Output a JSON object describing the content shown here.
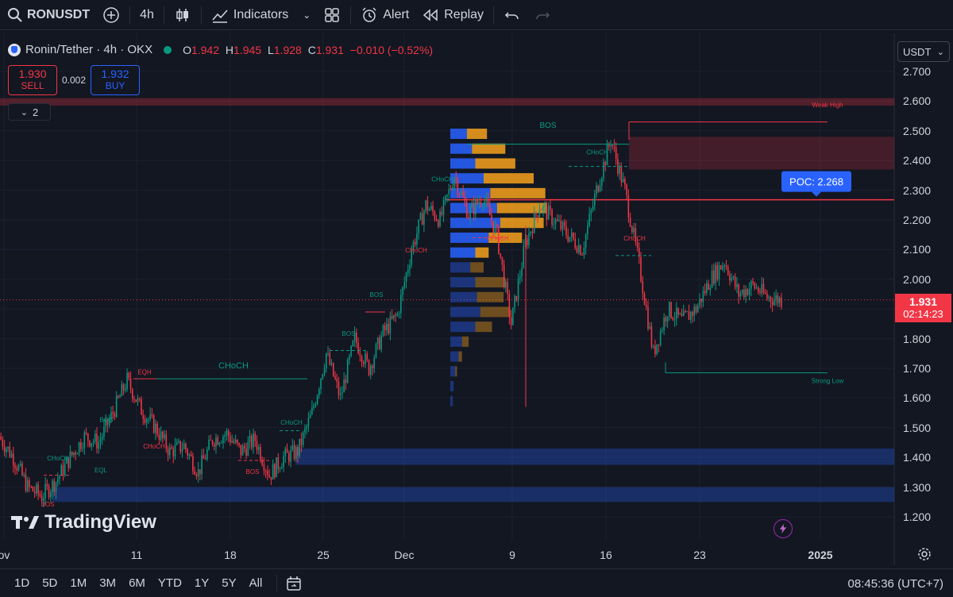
{
  "toolbar": {
    "symbol": "RONUSDT",
    "interval": "4h",
    "indicators_label": "Indicators",
    "alert_label": "Alert",
    "replay_label": "Replay"
  },
  "legend": {
    "title": "Ronin/Tether · 4h · OKX",
    "o_label": "O",
    "o_value": "1.942",
    "h_label": "H",
    "h_value": "1.945",
    "l_label": "L",
    "l_value": "1.928",
    "c_label": "C",
    "c_value": "1.931",
    "change": "−0.010 (−0.52%)"
  },
  "trade": {
    "sell_price": "1.930",
    "sell_label": "SELL",
    "spread": "0.002",
    "buy_price": "1.932",
    "buy_label": "BUY"
  },
  "indicators_count": "2",
  "price_axis": {
    "currency": "USDT",
    "ticks": [
      "2.700",
      "2.600",
      "2.500",
      "2.400",
      "2.300",
      "2.200",
      "2.100",
      "2.000",
      "1.900",
      "1.800",
      "1.700",
      "1.600",
      "1.500",
      "1.400",
      "1.300",
      "1.200"
    ],
    "last_price": "1.931",
    "countdown": "02:14:23"
  },
  "time_axis": {
    "ticks": [
      "ov",
      "11",
      "18",
      "25",
      "Dec",
      "9",
      "16",
      "23",
      "2025"
    ]
  },
  "annotations": {
    "poc": "POC: 2.268",
    "weak_high": "Weak High",
    "strong_low": "Strong Low",
    "bos": "BOS",
    "choch": "CHoCH",
    "eqh": "EQH",
    "eql": "EQL"
  },
  "bottom": {
    "ranges": [
      "1D",
      "5D",
      "1M",
      "3M",
      "6M",
      "YTD",
      "1Y",
      "5Y",
      "All"
    ],
    "clock": "08:45:36 (UTC+7)"
  },
  "watermark": "TradingView",
  "colors": {
    "background": "#131722",
    "up": "#089981",
    "down": "#f23645",
    "accent": "#2962ff",
    "vp_blue": "#2962ff",
    "vp_orange": "#f7a21b"
  },
  "chart_data": {
    "type": "candlestick",
    "title": "Ronin/Tether · 4h · OKX",
    "ylim": [
      1.2,
      2.7
    ],
    "poc": 2.268,
    "last_price": 1.931,
    "close_path": [
      [
        "ov",
        1.47
      ],
      [
        "",
        1.4
      ],
      [
        "",
        1.3
      ],
      [
        "",
        1.27
      ],
      [
        "",
        1.32
      ],
      [
        "",
        1.4
      ],
      [
        "",
        1.47
      ],
      [
        "",
        1.45
      ],
      [
        "11",
        1.55
      ],
      [
        "",
        1.66
      ],
      [
        "",
        1.56
      ],
      [
        "",
        1.5
      ],
      [
        "",
        1.42
      ],
      [
        "",
        1.44
      ],
      [
        "",
        1.35
      ],
      [
        "",
        1.46
      ],
      [
        "18",
        1.48
      ],
      [
        "",
        1.42
      ],
      [
        "",
        1.46
      ],
      [
        "",
        1.34
      ],
      [
        "",
        1.4
      ],
      [
        "",
        1.42
      ],
      [
        "",
        1.55
      ],
      [
        "",
        1.75
      ],
      [
        "25",
        1.6
      ],
      [
        "",
        1.8
      ],
      [
        "",
        1.7
      ],
      [
        "",
        1.82
      ],
      [
        "",
        1.88
      ],
      [
        "",
        2.1
      ],
      [
        "Dec",
        2.25
      ],
      [
        "",
        2.2
      ],
      [
        "",
        2.35
      ],
      [
        "",
        2.22
      ],
      [
        "",
        2.28
      ],
      [
        "9",
        2.15
      ],
      [
        "",
        1.85
      ],
      [
        "",
        2.12
      ],
      [
        "",
        2.25
      ],
      [
        "",
        2.2
      ],
      [
        "",
        2.15
      ],
      [
        "16",
        2.1
      ],
      [
        "",
        2.3
      ],
      [
        "",
        2.47
      ],
      [
        "",
        2.3
      ],
      [
        "",
        2.05
      ],
      [
        "",
        1.75
      ],
      [
        "",
        1.9
      ],
      [
        "",
        1.86
      ],
      [
        "23",
        1.9
      ],
      [
        "",
        2.0
      ],
      [
        "",
        2.06
      ],
      [
        "",
        1.95
      ],
      [
        "",
        1.98
      ],
      [
        "",
        1.94
      ],
      [
        "",
        1.931
      ]
    ],
    "volume_profile": [
      {
        "price": 2.49,
        "blue": 1.0,
        "orange": 1.2
      },
      {
        "price": 2.44,
        "blue": 1.3,
        "orange": 2.0
      },
      {
        "price": 2.39,
        "blue": 1.5,
        "orange": 2.4
      },
      {
        "price": 2.34,
        "blue": 2.0,
        "orange": 3.0
      },
      {
        "price": 2.29,
        "blue": 2.4,
        "orange": 3.3
      },
      {
        "price": 2.24,
        "blue": 2.8,
        "orange": 3.0
      },
      {
        "price": 2.19,
        "blue": 3.0,
        "orange": 2.6
      },
      {
        "price": 2.14,
        "blue": 2.3,
        "orange": 2.0
      },
      {
        "price": 2.09,
        "blue": 1.5,
        "orange": 0.8
      },
      {
        "price": 2.04,
        "blue": 1.2,
        "orange": 0.8
      },
      {
        "price": 1.99,
        "blue": 1.5,
        "orange": 1.8
      },
      {
        "price": 1.94,
        "blue": 1.6,
        "orange": 1.6
      },
      {
        "price": 1.89,
        "blue": 1.8,
        "orange": 1.8
      },
      {
        "price": 1.84,
        "blue": 1.5,
        "orange": 1.0
      },
      {
        "price": 1.79,
        "blue": 0.7,
        "orange": 0.4
      },
      {
        "price": 1.74,
        "blue": 0.5,
        "orange": 0.2
      },
      {
        "price": 1.69,
        "blue": 0.3,
        "orange": 0.1
      },
      {
        "price": 1.64,
        "blue": 0.2,
        "orange": 0.0
      },
      {
        "price": 1.59,
        "blue": 0.15,
        "orange": 0.0
      }
    ],
    "zones": [
      {
        "type": "supply",
        "top": 2.48,
        "bottom": 2.37
      },
      {
        "type": "resistance",
        "top": 2.61,
        "bottom": 2.585
      },
      {
        "type": "demand",
        "top": 1.43,
        "bottom": 1.375
      },
      {
        "type": "demand",
        "top": 1.3,
        "bottom": 1.25
      }
    ]
  }
}
